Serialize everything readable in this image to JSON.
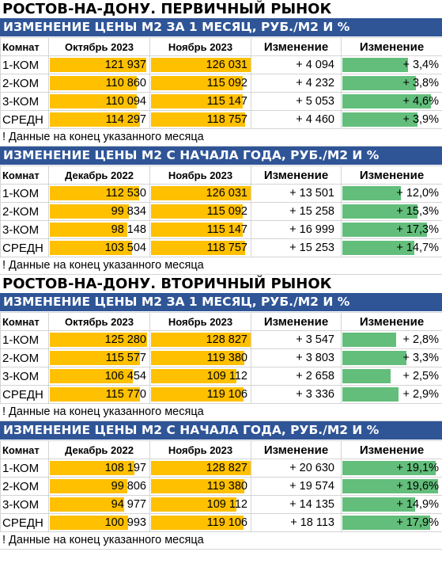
{
  "blocks": [
    {
      "title": "РОСТОВ-НА-ДОНУ. ПЕРВИЧНЫЙ РЫНОК",
      "tables": [
        {
          "band": "ИЗМЕНЕНИЕ ЦЕНЫ М2 ЗА 1 МЕСЯЦ, РУБ./М2 И %",
          "headers": [
            "Комнат",
            "Октябрь 2023",
            "Ноябрь 2023",
            "Изменение",
            "Изменение"
          ],
          "rows": [
            {
              "room": "1-КОМ",
              "a": "121 937",
              "b": "126 031",
              "diff": "+ 4 094",
              "pct": "+ 3,4%",
              "a_fill": 0.96,
              "b_fill": 0.995,
              "pct_value": 3.4
            },
            {
              "room": "2-КОМ",
              "a": "110 860",
              "b": "115 092",
              "diff": "+ 4 232",
              "pct": "+ 3,8%",
              "a_fill": 0.87,
              "b_fill": 0.91,
              "pct_value": 3.8
            },
            {
              "room": "3-КОМ",
              "a": "110 094",
              "b": "115 147",
              "diff": "+ 5 053",
              "pct": "+ 4,6%",
              "a_fill": 0.87,
              "b_fill": 0.91,
              "pct_value": 4.6
            },
            {
              "room": "СРЕДН",
              "a": "114 297",
              "b": "118 757",
              "diff": "+ 4 460",
              "pct": "+ 3,9%",
              "a_fill": 0.9,
              "b_fill": 0.94,
              "pct_value": 3.9
            }
          ],
          "note": "! Данные на конец указанного месяца"
        },
        {
          "band": "ИЗМЕНЕНИЕ ЦЕНЫ М2 С НАЧАЛА ГОДА, РУБ./М2 И %",
          "headers": [
            "Комнат",
            "Декабрь 2022",
            "Ноябрь 2023",
            "Изменение",
            "Изменение"
          ],
          "rows": [
            {
              "room": "1-КОМ",
              "a": "112 530",
              "b": "126 031",
              "diff": "+ 13 501",
              "pct": "+ 12,0%",
              "a_fill": 0.89,
              "b_fill": 0.995,
              "pct_value": 12.0
            },
            {
              "room": "2-КОМ",
              "a": "99 834",
              "b": "115 092",
              "diff": "+ 15 258",
              "pct": "+ 15,3%",
              "a_fill": 0.79,
              "b_fill": 0.91,
              "pct_value": 15.3
            },
            {
              "room": "3-КОМ",
              "a": "98 148",
              "b": "115 147",
              "diff": "+ 16 999",
              "pct": "+ 17,3%",
              "a_fill": 0.77,
              "b_fill": 0.91,
              "pct_value": 17.3
            },
            {
              "room": "СРЕДН",
              "a": "103 504",
              "b": "118 757",
              "diff": "+ 15 253",
              "pct": "+ 14,7%",
              "a_fill": 0.82,
              "b_fill": 0.94,
              "pct_value": 14.7
            }
          ],
          "note": "! Данные на конец указанного месяца"
        }
      ]
    },
    {
      "title": "РОСТОВ-НА-ДОНУ. ВТОРИЧНЫЙ РЫНОК",
      "tables": [
        {
          "band": "ИЗМЕНЕНИЕ ЦЕНЫ М2 ЗА 1 МЕСЯЦ, РУБ./М2 И %",
          "headers": [
            "Комнат",
            "Октябрь 2023",
            "Ноябрь 2023",
            "Изменение",
            "Изменение"
          ],
          "rows": [
            {
              "room": "1-КОМ",
              "a": "125 280",
              "b": "128 827",
              "diff": "+ 3 547",
              "pct": "+ 2,8%",
              "a_fill": 0.97,
              "b_fill": 0.995,
              "pct_value": 2.8
            },
            {
              "room": "2-КОМ",
              "a": "115 577",
              "b": "119 380",
              "diff": "+ 3 803",
              "pct": "+ 3,3%",
              "a_fill": 0.9,
              "b_fill": 0.93,
              "pct_value": 3.3
            },
            {
              "room": "3-КОМ",
              "a": "106 454",
              "b": "109 112",
              "diff": "+ 2 658",
              "pct": "+ 2,5%",
              "a_fill": 0.83,
              "b_fill": 0.85,
              "pct_value": 2.5
            },
            {
              "room": "СРЕДН",
              "a": "115 770",
              "b": "119 106",
              "diff": "+ 3 336",
              "pct": "+ 2,9%",
              "a_fill": 0.9,
              "b_fill": 0.925,
              "pct_value": 2.9
            }
          ],
          "note": "! Данные на конец указанного месяца"
        },
        {
          "band": "ИЗМЕНЕНИЕ ЦЕНЫ М2 С НАЧАЛА ГОДА, РУБ./М2 И %",
          "headers": [
            "Комнат",
            "Декабрь 2022",
            "Ноябрь 2023",
            "Изменение",
            "Изменение"
          ],
          "rows": [
            {
              "room": "1-КОМ",
              "a": "108 197",
              "b": "128 827",
              "diff": "+ 20 630",
              "pct": "+ 19,1%",
              "a_fill": 0.84,
              "b_fill": 0.995,
              "pct_value": 19.1
            },
            {
              "room": "2-КОМ",
              "a": "99 806",
              "b": "119 380",
              "diff": "+ 19 574",
              "pct": "+ 19,6%",
              "a_fill": 0.77,
              "b_fill": 0.93,
              "pct_value": 19.6
            },
            {
              "room": "3-КОМ",
              "a": "94 977",
              "b": "109 112",
              "diff": "+ 14 135",
              "pct": "+ 14,9%",
              "a_fill": 0.74,
              "b_fill": 0.85,
              "pct_value": 14.9
            },
            {
              "room": "СРЕДН",
              "a": "100 993",
              "b": "119 106",
              "diff": "+ 18 113",
              "pct": "+ 17,9%",
              "a_fill": 0.78,
              "b_fill": 0.925,
              "pct_value": 17.9
            }
          ],
          "note": "! Данные на конец указанного месяца"
        }
      ]
    }
  ],
  "colors": {
    "band": "#2f5597",
    "price_bar": "#ffc000",
    "change_bar": "#63be7b"
  }
}
